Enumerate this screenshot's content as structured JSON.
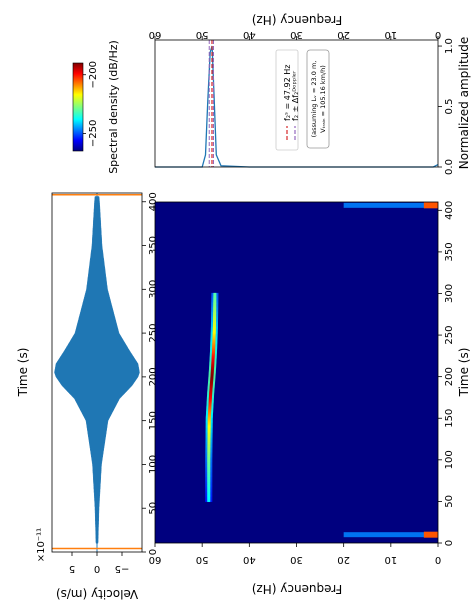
{
  "chart_data": [
    {
      "type": "line",
      "panel": "velocity-time-series",
      "ylabel": "Time (s)",
      "xlabel": "Velocity (m/s)",
      "multiplier_label": "×10⁻¹¹",
      "time_ticks": [
        "0",
        "50",
        "100",
        "150",
        "200",
        "250",
        "300",
        "350",
        "400"
      ],
      "time_tick_values": [
        0,
        50,
        100,
        150,
        200,
        250,
        300,
        350,
        400
      ],
      "velocity_ticks": [
        "5",
        "0",
        "−5"
      ],
      "velocity_tick_values": [
        5,
        0,
        -5
      ],
      "time_range": [
        0,
        410
      ],
      "velocity_range": [
        9,
        -9
      ],
      "series": [
        {
          "color": "#1f77b4",
          "envelope_time": [
            10,
            50,
            100,
            150,
            175,
            190,
            200,
            205,
            215,
            230,
            250,
            300,
            350,
            400,
            406
          ],
          "envelope_amplitude": [
            0.2,
            0.4,
            0.9,
            2.2,
            4.5,
            7.0,
            8.2,
            8.5,
            8.2,
            6.5,
            4.4,
            2.1,
            1.0,
            0.5,
            0.4
          ]
        },
        {
          "color": "#ff7f0e",
          "spikes_time": [
            4,
            408
          ],
          "spikes_amplitude": [
            9.0,
            9.0
          ]
        }
      ]
    },
    {
      "type": "heatmap",
      "panel": "spectrogram",
      "ylabel": "Time (s)",
      "xlabel": "Frequency (Hz)",
      "time_ticks": [
        "0",
        "50",
        "100",
        "150",
        "200",
        "250",
        "300",
        "350",
        "400"
      ],
      "time_tick_values": [
        0,
        50,
        100,
        150,
        200,
        250,
        300,
        350,
        400
      ],
      "freq_ticks": [
        "60",
        "50",
        "40",
        "30",
        "20",
        "10",
        "0"
      ],
      "freq_tick_values": [
        60,
        50,
        40,
        30,
        20,
        10,
        0
      ],
      "time_range": [
        0,
        410
      ],
      "freq_range": [
        0,
        60
      ],
      "ridge_time": [
        50,
        100,
        150,
        180,
        200,
        210,
        230,
        260,
        300
      ],
      "ridge_frequency": [
        48.6,
        48.6,
        48.5,
        48.2,
        47.92,
        47.8,
        47.6,
        47.4,
        47.3
      ],
      "ridge_strength": [
        0.2,
        0.4,
        0.7,
        0.9,
        1.0,
        0.95,
        0.8,
        0.6,
        0.35
      ],
      "background_color": "#00007f"
    },
    {
      "type": "line",
      "panel": "normalized-spectrum",
      "ylabel": "Normalized amplitude",
      "xlabel": "Frequency (Hz)",
      "amp_ticks": [
        "0.0",
        "0.5",
        "1.0"
      ],
      "amp_tick_values": [
        0.0,
        0.5,
        1.0
      ],
      "freq_ticks": [
        "60",
        "50",
        "40",
        "30",
        "20",
        "10",
        "0"
      ],
      "freq_tick_values": [
        60,
        50,
        40,
        30,
        20,
        10,
        0
      ],
      "amp_range": [
        0,
        1.05
      ],
      "freq_range": [
        0,
        60
      ],
      "spectrum_frequency": [
        0,
        1,
        40,
        46,
        47,
        47.5,
        47.9,
        48.3,
        48.8,
        49.3,
        50,
        60
      ],
      "spectrum_amplitude": [
        0.02,
        0.0,
        0.0,
        0.01,
        0.1,
        0.6,
        1.0,
        0.95,
        0.55,
        0.1,
        0.0,
        0.0
      ],
      "f_center": 47.92,
      "f_doppler_lo": 47.6,
      "f_doppler_hi": 48.5,
      "legend": [
        {
          "label": "f₂ˢ = 47.92 Hz",
          "color": "#d62728",
          "style": "dashed"
        },
        {
          "label": "f₂ ± Δf₂ᴰᵒᵖᵖˡᵉʳ",
          "color": "#9467bd",
          "style": "dashed"
        }
      ],
      "annotation_line1": "(assuming Lᵥ = 23.0 m,",
      "annotation_line2": "Vₜᵣₐᵢₙ = 105.16 km/h)"
    },
    {
      "type": "heatmap",
      "panel": "colorbar",
      "label": "Spectral density (dB/Hz)",
      "ticks": [
        "−250",
        "−200"
      ],
      "tick_values": [
        -250,
        -200
      ],
      "range": [
        -265,
        -190
      ],
      "colormap": "jet"
    }
  ]
}
